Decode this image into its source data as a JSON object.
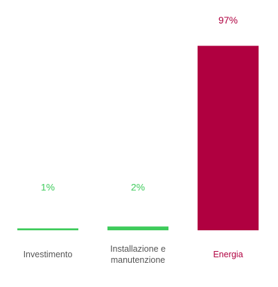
{
  "chart_data": {
    "type": "bar",
    "categories": [
      "Investimento",
      "Installazione e manutenzione",
      "Energia"
    ],
    "values": [
      1,
      2,
      97
    ],
    "value_labels": [
      "1%",
      "2%",
      "97%"
    ],
    "colors": [
      "#3ecb5b",
      "#3ecb5b",
      "#b00040"
    ],
    "label_colors": [
      "#555555",
      "#555555",
      "#b00040"
    ],
    "ylim": [
      0,
      100
    ]
  }
}
